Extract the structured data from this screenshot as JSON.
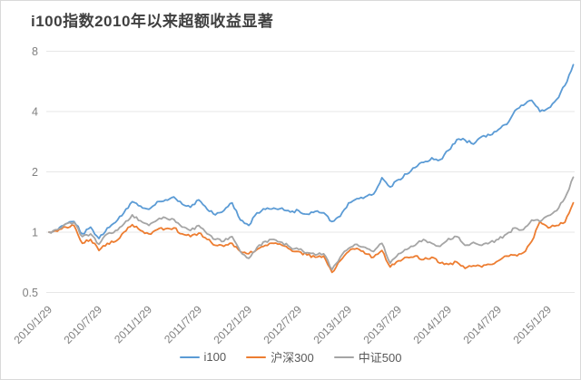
{
  "title": "i100指数2010年以来超额收益显著",
  "colors": {
    "i100": "#5B9BD5",
    "hs300": "#ED7D31",
    "zz500": "#A5A5A5",
    "grid": "#E7E7E7",
    "axis_label": "#808080",
    "title_text": "#404040",
    "legend_text": "#595959",
    "frame_border": "#D9D9D9",
    "background": "#FFFFFF"
  },
  "chart_data": {
    "type": "line",
    "title": "i100指数2010年以来超额收益显著",
    "y_scale": "log2",
    "ylim": [
      0.5,
      8
    ],
    "y_tick_labels": [
      "8",
      "4",
      "2",
      "1",
      "0.5"
    ],
    "y_tick_values": [
      8,
      4,
      2,
      1,
      0.5
    ],
    "x_tick_labels": [
      "2010/1/29",
      "2010/7/29",
      "2011/1/29",
      "2011/7/29",
      "2012/1/29",
      "2012/7/29",
      "2013/1/29",
      "2013/7/29",
      "2014/1/29",
      "2014/7/29",
      "2015/1/29"
    ],
    "x_unit": "months since 2010/1/29, monthly samples through 2015/4",
    "grid": "horizontal",
    "legend_position": "bottom-center",
    "series": [
      {
        "name": "i100",
        "color": "#5B9BD5",
        "values": [
          1.0,
          1.02,
          1.1,
          1.13,
          0.98,
          1.06,
          0.93,
          1.05,
          1.12,
          1.25,
          1.42,
          1.35,
          1.3,
          1.42,
          1.45,
          1.5,
          1.38,
          1.33,
          1.45,
          1.3,
          1.22,
          1.28,
          1.4,
          1.15,
          1.08,
          1.25,
          1.3,
          1.32,
          1.32,
          1.26,
          1.28,
          1.23,
          1.27,
          1.25,
          1.13,
          1.2,
          1.4,
          1.47,
          1.5,
          1.55,
          1.87,
          1.68,
          1.83,
          1.95,
          2.1,
          2.23,
          2.35,
          2.3,
          2.56,
          2.9,
          2.88,
          2.75,
          3.0,
          3.05,
          3.25,
          3.45,
          4.05,
          4.3,
          4.55,
          4.0,
          4.16,
          4.6,
          5.4,
          6.85
        ]
      },
      {
        "name": "沪深300",
        "color": "#ED7D31",
        "values": [
          1.0,
          1.01,
          1.06,
          1.08,
          0.88,
          0.92,
          0.81,
          0.88,
          0.9,
          1.0,
          1.09,
          1.02,
          0.98,
          1.03,
          1.04,
          1.05,
          0.98,
          0.95,
          0.99,
          0.92,
          0.86,
          0.85,
          0.88,
          0.8,
          0.78,
          0.82,
          0.86,
          0.88,
          0.86,
          0.82,
          0.8,
          0.77,
          0.75,
          0.76,
          0.63,
          0.72,
          0.8,
          0.83,
          0.78,
          0.75,
          0.81,
          0.67,
          0.72,
          0.75,
          0.76,
          0.73,
          0.75,
          0.7,
          0.69,
          0.71,
          0.66,
          0.68,
          0.67,
          0.69,
          0.72,
          0.76,
          0.77,
          0.79,
          0.9,
          1.13,
          1.05,
          1.08,
          1.12,
          1.4
        ]
      },
      {
        "name": "中证500",
        "color": "#A5A5A5",
        "values": [
          1.0,
          1.03,
          1.1,
          1.12,
          0.95,
          0.98,
          0.87,
          0.98,
          1.02,
          1.1,
          1.22,
          1.14,
          1.08,
          1.15,
          1.18,
          1.16,
          1.06,
          1.02,
          1.08,
          0.98,
          0.92,
          0.9,
          0.95,
          0.8,
          0.74,
          0.84,
          0.9,
          0.92,
          0.89,
          0.84,
          0.82,
          0.79,
          0.77,
          0.78,
          0.65,
          0.75,
          0.83,
          0.87,
          0.84,
          0.8,
          0.88,
          0.7,
          0.78,
          0.82,
          0.86,
          0.92,
          0.88,
          0.85,
          0.93,
          0.95,
          0.86,
          0.89,
          0.86,
          0.89,
          0.92,
          0.98,
          1.05,
          1.03,
          1.15,
          1.13,
          1.21,
          1.28,
          1.48,
          1.88
        ]
      }
    ]
  }
}
